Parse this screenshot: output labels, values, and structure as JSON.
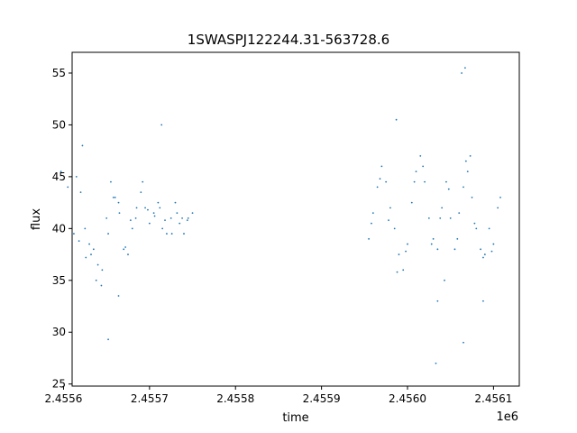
{
  "chart_data": {
    "type": "scatter",
    "title": "1SWASPJ122244.31-563728.6",
    "xlabel": "time",
    "ylabel": "flux",
    "x_offset_label": "1e6",
    "xlim": [
      2.45561,
      2.45613
    ],
    "ylim": [
      24.8,
      57.0
    ],
    "x_ticks": [
      2.4556,
      2.4557,
      2.4558,
      2.4559,
      2.456,
      2.4561
    ],
    "x_tick_labels": [
      "2.4556",
      "2.4557",
      "2.4558",
      "2.4559",
      "2.4560",
      "2.4561"
    ],
    "y_ticks": [
      25,
      30,
      35,
      40,
      45,
      50,
      55
    ],
    "y_tick_labels": [
      "25",
      "30",
      "35",
      "40",
      "45",
      "50",
      "55"
    ],
    "grid": false,
    "legend": "none",
    "marker_color": "#1f77b4",
    "series": [
      {
        "x": [
          2.455615,
          2.45562,
          2.455625,
          2.45563,
          2.455635,
          2.45564,
          2.455645,
          2.45565,
          2.455655,
          2.45566,
          2.455665,
          2.45567,
          2.455675,
          2.45568,
          2.455685,
          2.45569,
          2.455695,
          2.4557,
          2.455705,
          2.45571,
          2.455715,
          2.45572,
          2.455725,
          2.45573,
          2.455735,
          2.45574,
          2.455745,
          2.45575,
          2.455597,
          2.455605,
          2.455612,
          2.455618,
          2.455626,
          2.455632,
          2.455638,
          2.455644,
          2.455652,
          2.455658,
          2.455664,
          2.455672,
          2.455678,
          2.455684,
          2.455692,
          2.455698,
          2.455706,
          2.455712,
          2.455718,
          2.455726,
          2.455732,
          2.455738,
          2.455744,
          2.455664,
          2.455652,
          2.455622,
          2.455714
        ],
        "y": [
          45.0,
          43.5,
          40.0,
          38.5,
          38.0,
          36.5,
          36.0,
          41.0,
          44.5,
          43.0,
          41.5,
          38.0,
          37.5,
          40.0,
          42.0,
          43.5,
          42.0,
          40.5,
          41.5,
          42.5,
          40.0,
          39.5,
          41.0,
          42.5,
          40.5,
          39.5,
          41.0,
          41.5,
          45.5,
          44.0,
          39.5,
          38.8,
          37.2,
          37.5,
          35.0,
          34.5,
          39.5,
          43.0,
          42.5,
          38.2,
          40.8,
          41.0,
          44.5,
          41.8,
          41.2,
          42.0,
          40.8,
          39.5,
          41.5,
          41.0,
          40.8,
          33.5,
          29.3,
          48.0,
          50.0
        ]
      },
      {
        "x": [
          2.455955,
          2.45596,
          2.455965,
          2.45597,
          2.455975,
          2.45598,
          2.455985,
          2.45599,
          2.455995,
          2.456,
          2.456005,
          2.45601,
          2.456015,
          2.45602,
          2.456025,
          2.45603,
          2.456035,
          2.45604,
          2.456045,
          2.45605,
          2.456055,
          2.45606,
          2.456065,
          2.45607,
          2.456075,
          2.45608,
          2.456085,
          2.45609,
          2.456095,
          2.4561,
          2.456105,
          2.456108,
          2.455958,
          2.455968,
          2.455978,
          2.455988,
          2.455998,
          2.456008,
          2.456018,
          2.456028,
          2.456038,
          2.456048,
          2.456058,
          2.456068,
          2.456078,
          2.456088,
          2.456098,
          2.456063,
          2.456067,
          2.456033,
          2.456035,
          2.455987,
          2.456065,
          2.456043,
          2.456073,
          2.456088
        ],
        "y": [
          39.0,
          41.5,
          44.0,
          46.0,
          44.5,
          42.0,
          40.0,
          37.5,
          36.0,
          38.5,
          42.5,
          45.5,
          47.0,
          44.5,
          41.0,
          39.0,
          38.0,
          42.0,
          44.5,
          41.0,
          38.0,
          41.5,
          44.0,
          45.5,
          43.0,
          40.0,
          38.0,
          37.5,
          40.0,
          38.5,
          42.0,
          43.0,
          40.5,
          44.8,
          40.8,
          35.8,
          37.8,
          44.5,
          46.0,
          38.5,
          41.0,
          43.8,
          39.0,
          46.5,
          40.5,
          37.2,
          37.8,
          55.0,
          55.5,
          27.0,
          33.0,
          50.5,
          29.0,
          35.0,
          47.0,
          33.0
        ]
      }
    ]
  }
}
